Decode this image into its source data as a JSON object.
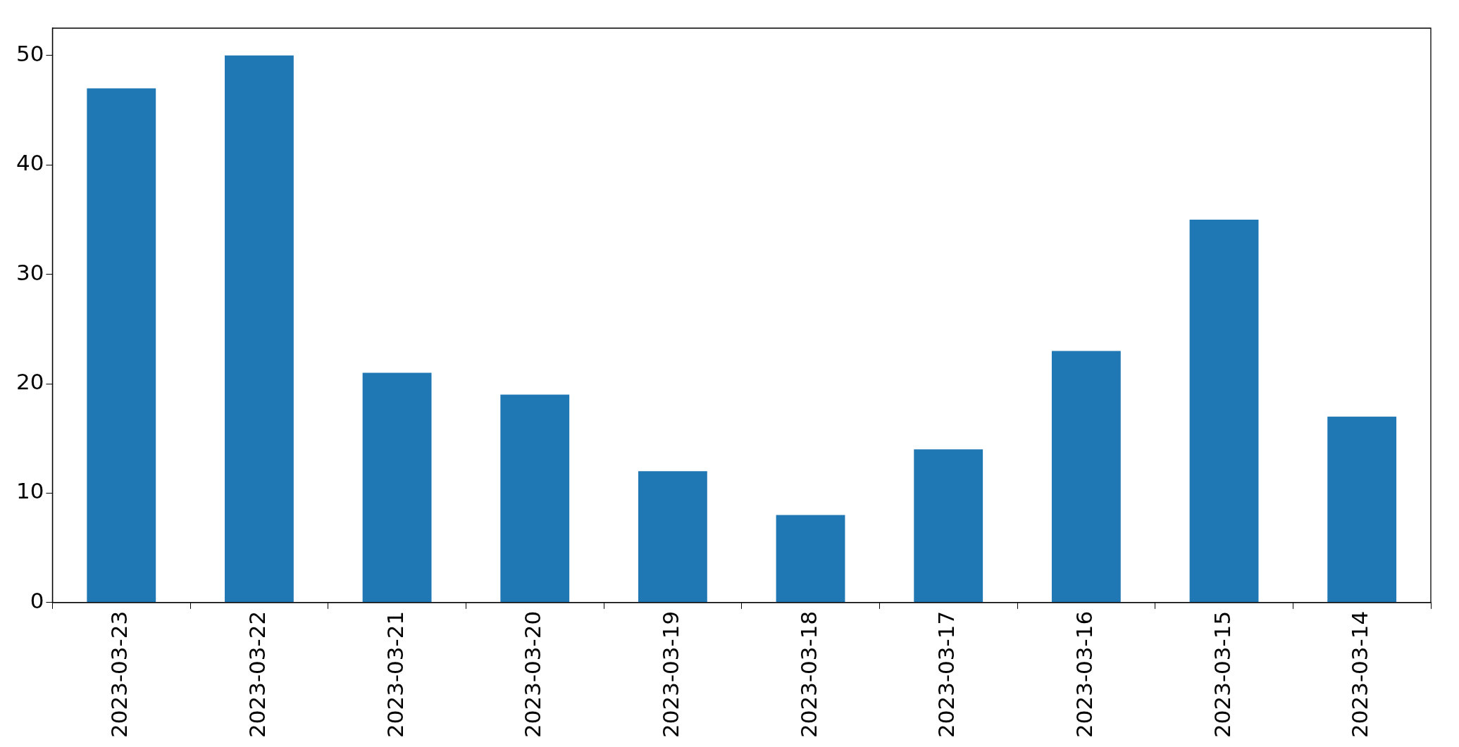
{
  "chart_data": {
    "type": "bar",
    "categories": [
      "2023-03-23",
      "2023-03-22",
      "2023-03-21",
      "2023-03-20",
      "2023-03-19",
      "2023-03-18",
      "2023-03-17",
      "2023-03-16",
      "2023-03-15",
      "2023-03-14"
    ],
    "values": [
      47,
      50,
      21,
      19,
      12,
      8,
      14,
      23,
      35,
      17
    ],
    "color": "#1f77b4",
    "ylim": [
      0,
      52.5
    ],
    "yticks": [
      0,
      10,
      20,
      30,
      40,
      50
    ],
    "grid": false,
    "legend": false
  }
}
